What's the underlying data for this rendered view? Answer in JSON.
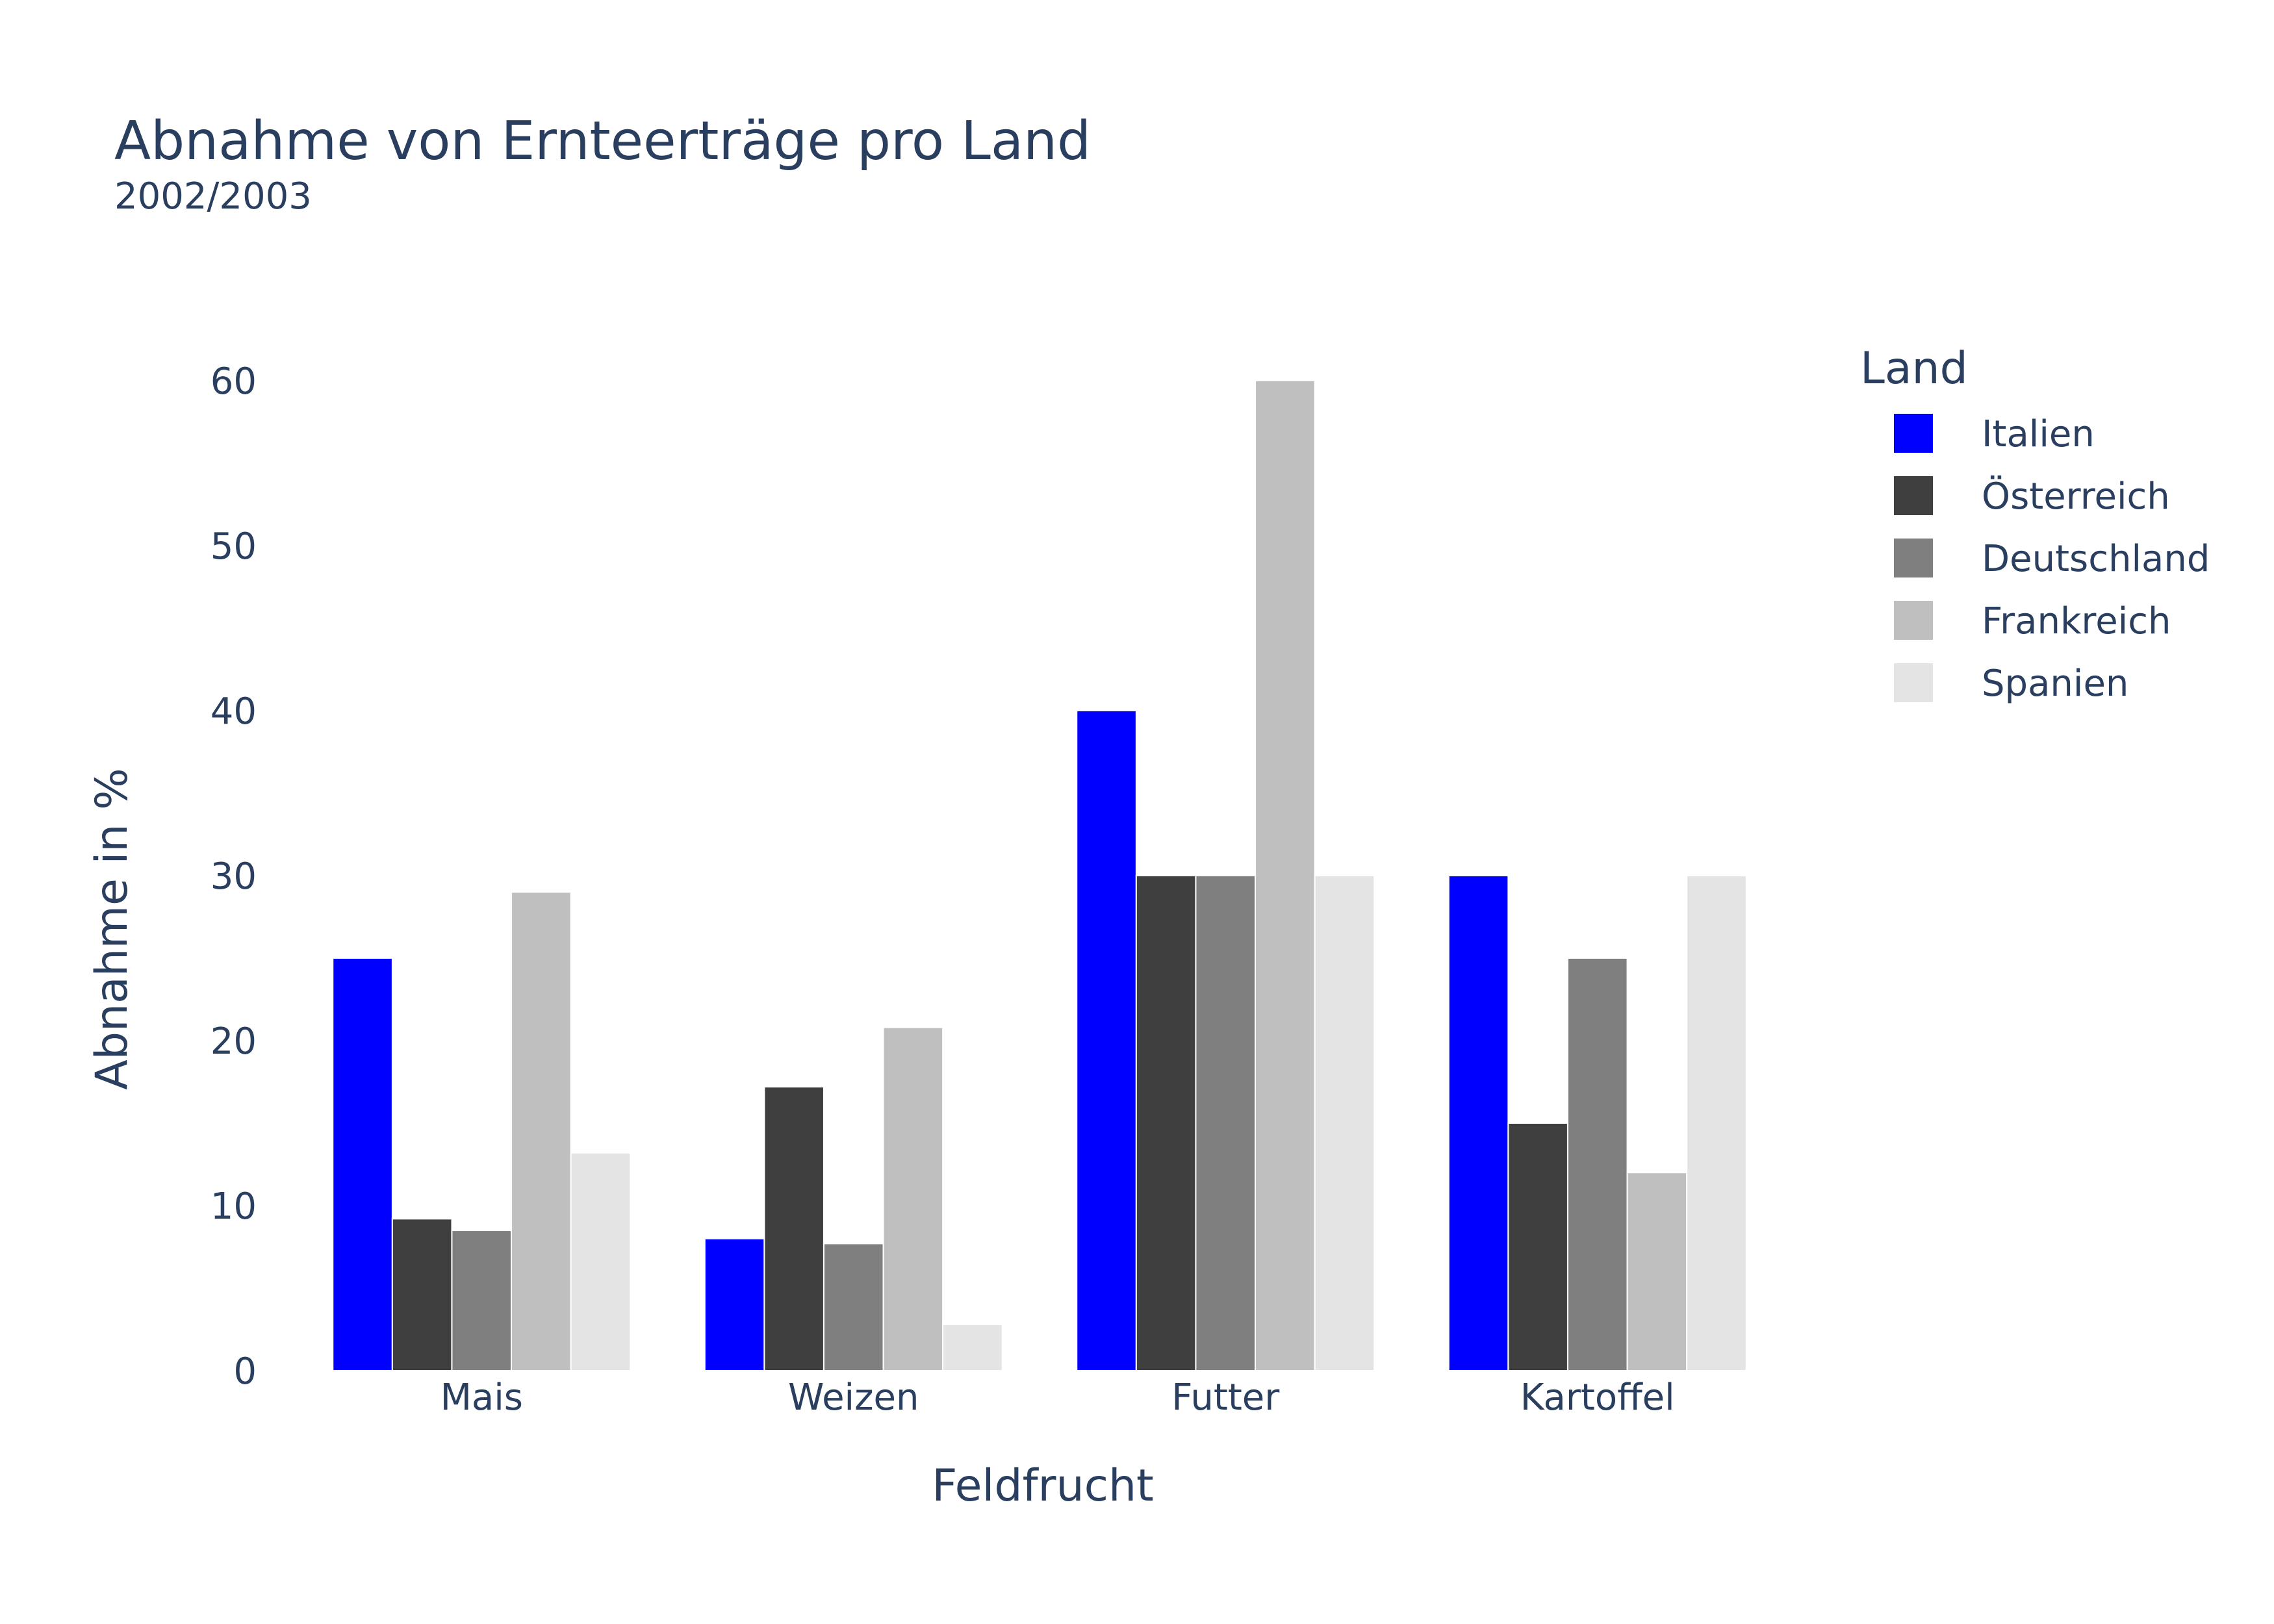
{
  "chart_data": {
    "type": "bar",
    "title": "Abnahme von Ernteerträge pro Land",
    "subtitle": "2002/2003",
    "xlabel": "Feldfrucht",
    "ylabel": "Abnahme in %",
    "categories": [
      "Mais",
      "Weizen",
      "Futter",
      "Kartoffel"
    ],
    "ylim": [
      0,
      62
    ],
    "yticks": [
      0,
      10,
      20,
      30,
      40,
      50,
      60
    ],
    "grid": false,
    "legend": {
      "title": "Land",
      "position": "right"
    },
    "series": [
      {
        "name": "Italien",
        "color": "#0000ff",
        "values": [
          25,
          8,
          40,
          30
        ]
      },
      {
        "name": "Österreich",
        "color": "#3f3f3f",
        "values": [
          9.2,
          17.2,
          30,
          15
        ]
      },
      {
        "name": "Deutschland",
        "color": "#7f7f7f",
        "values": [
          8.5,
          7.7,
          30,
          25
        ]
      },
      {
        "name": "Frankreich",
        "color": "#bfbfbf",
        "values": [
          29,
          20.8,
          60,
          12
        ]
      },
      {
        "name": "Spanien",
        "color": "#e4e4e4",
        "values": [
          13.2,
          2.8,
          30,
          30
        ]
      }
    ]
  }
}
